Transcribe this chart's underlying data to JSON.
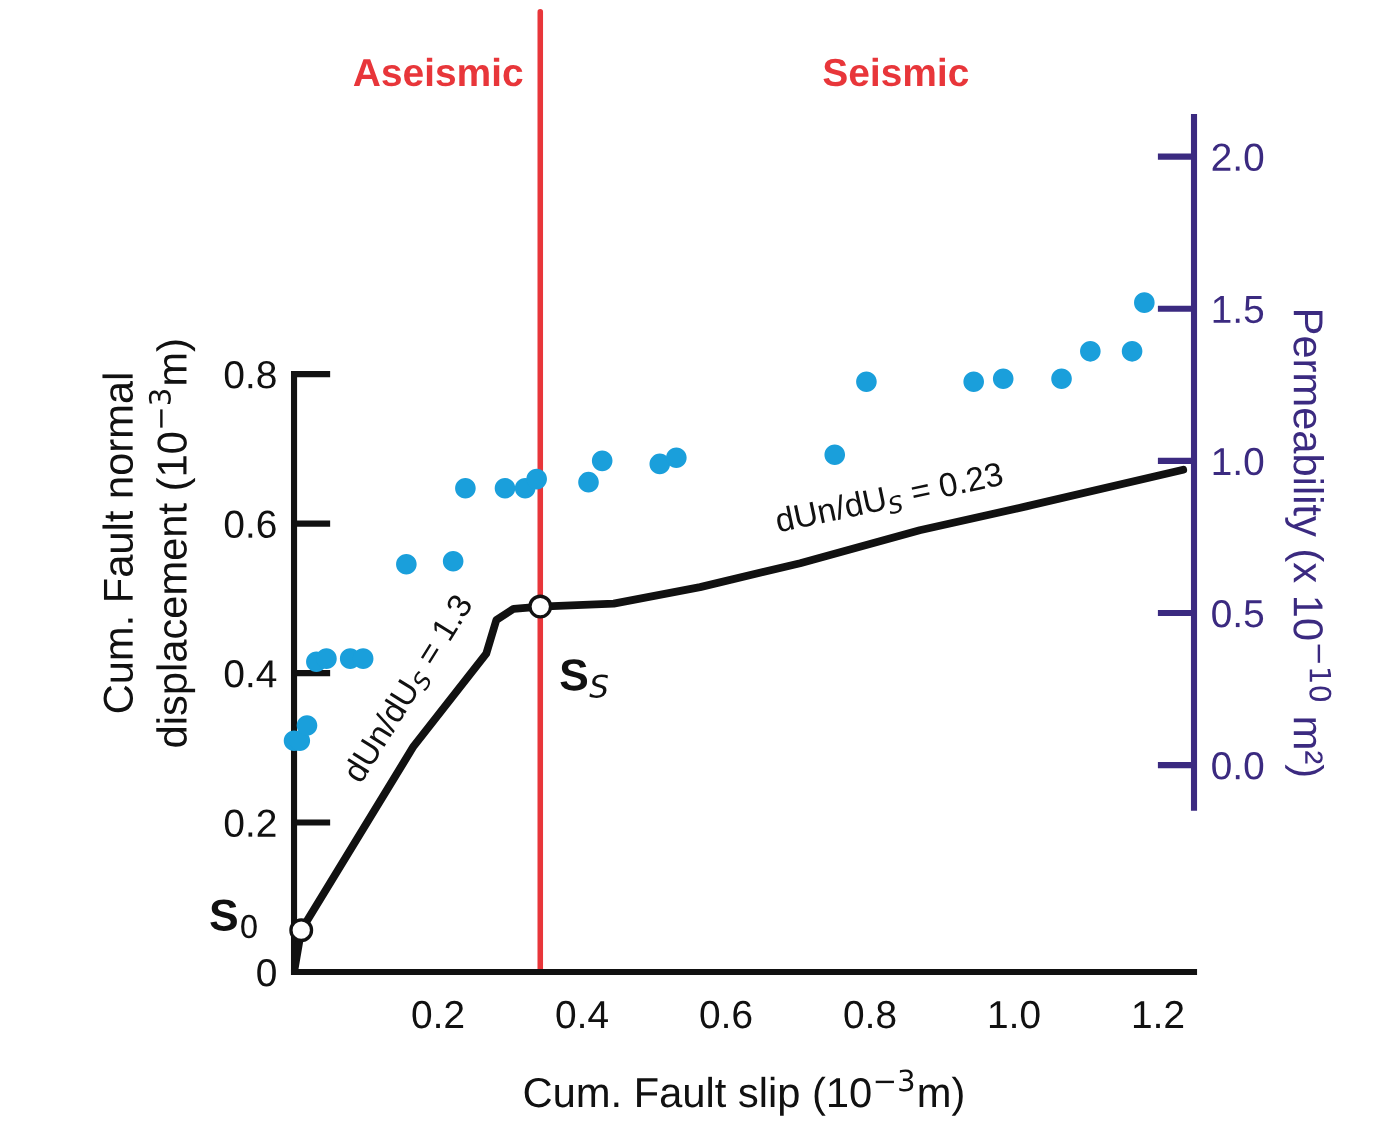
{
  "chart_data": {
    "type": "line",
    "xlabel": "Cum. Fault slip (10$^{−3}$m)",
    "ylabel": "Cum. Fault normal\ndisplacement (10$^{−3}$m)",
    "y2label": "Permeability (x 10$^{−10}$ m²)",
    "xlim": [
      0,
      1.25
    ],
    "xticks": [
      0.2,
      0.4,
      0.6,
      0.8,
      {
        "value": 1,
        "label": "1.0"
      },
      1.2
    ],
    "ylim": [
      0,
      1.148
    ],
    "yticks": [
      0,
      0.2,
      0.4,
      0.6,
      0.8
    ],
    "y2lim": [
      -0.68,
      2.14
    ],
    "y2ticks": [
      {
        "value": 0,
        "label": "0.0"
      },
      0.5,
      {
        "value": 1,
        "label": "1.0"
      },
      1.5,
      {
        "value": 2,
        "label": "2.0"
      }
    ],
    "grid": false,
    "series": [
      {
        "axis": "y",
        "color": "#111111",
        "line_style": "solid",
        "x": [
          0,
          0.01,
          0.166,
          0.267,
          0.281,
          0.305,
          0.342,
          0.444,
          0.564,
          0.703,
          0.869,
          1.017,
          1.235
        ],
        "values": [
          0,
          0.056,
          0.302,
          0.426,
          0.471,
          0.486,
          0.489,
          0.493,
          0.515,
          0.547,
          0.591,
          0.623,
          0.672
        ]
      },
      {
        "type": "scatter",
        "axis": "y2",
        "color": "#1a9fdb",
        "marker": "circle",
        "x": [
          0.0,
          0.008,
          0.018,
          0.031,
          0.045,
          0.078,
          0.096,
          0.156,
          0.221,
          0.238,
          0.293,
          0.321,
          0.337,
          0.409,
          0.428,
          0.508,
          0.531,
          0.751,
          0.795,
          0.944,
          0.985,
          1.066,
          1.106,
          1.164,
          1.181
        ],
        "values": [
          0.08,
          0.08,
          0.13,
          0.34,
          0.35,
          0.35,
          0.35,
          0.66,
          0.67,
          0.91,
          0.91,
          0.91,
          0.94,
          0.93,
          1.0,
          0.99,
          1.01,
          1.02,
          1.26,
          1.26,
          1.27,
          1.27,
          1.36,
          1.36,
          1.52
        ]
      },
      {
        "type": "scatter",
        "axis": "y",
        "color": "#ffffff",
        "marker": "circle",
        "x": [
          0.01,
          0.342
        ],
        "values": [
          0.056,
          0.489
        ]
      }
    ],
    "ref_lines": [
      {
        "axis": "x",
        "value": 0.342,
        "color": "#e8363a",
        "line_style": "solid"
      }
    ],
    "annotations": [
      "Aseismic",
      "Seismic",
      {
        "text": "S$_{0}$",
        "x": 0.01,
        "y": 0.056
      },
      {
        "text": "S$_{S}$",
        "x": 0.342,
        "y": 0.489
      },
      "dUn/dU$_{S}$ = 1.3",
      "dUn/dU$_{S}$ = 0.23"
    ]
  }
}
